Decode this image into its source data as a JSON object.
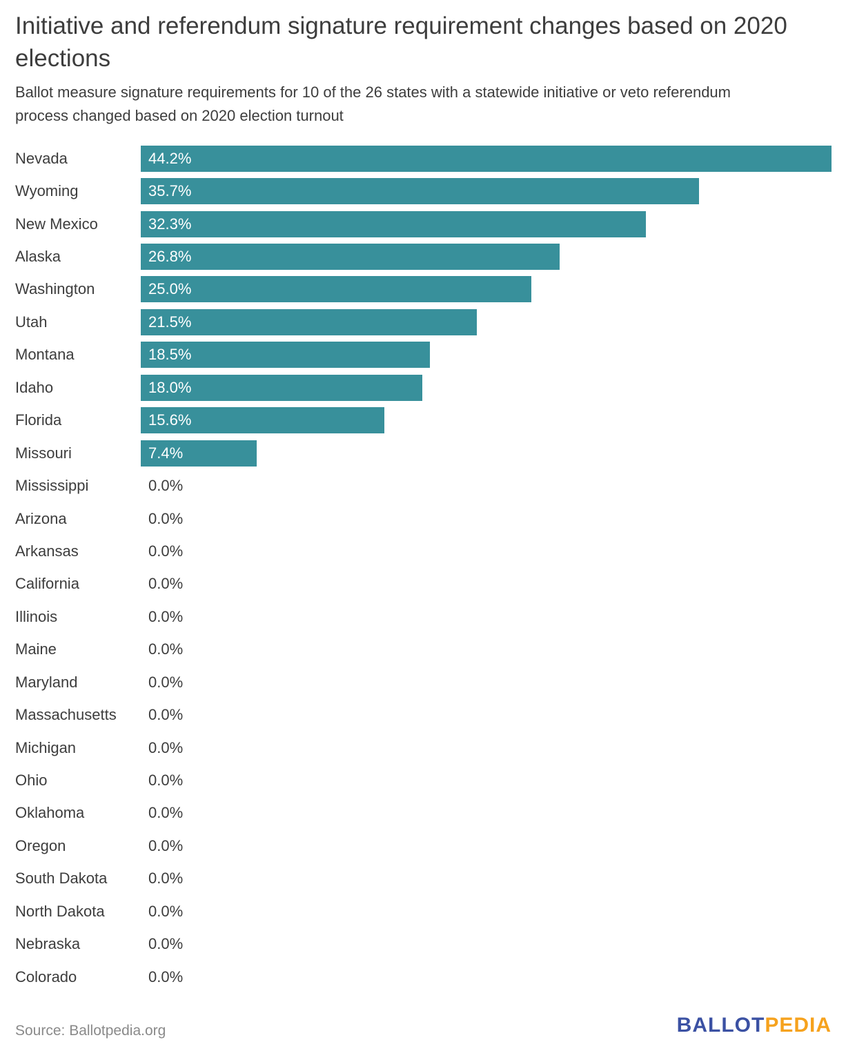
{
  "header": {
    "title": "Initiative and referendum signature requirement changes based on 2020 elections",
    "title_lines": [
      "Initiative and referendum signature requirement changes based on 2020",
      "elections"
    ],
    "subtitle": "Ballot measure signature requirements for 10 of the 26 states with a statewide initiative or veto referendum process changed based on 2020 election turnout",
    "subtitle_lines": [
      "Ballot measure signature requirements for 10 of the 26 states with a statewide initiative or veto referendum",
      "process changed based on 2020 election turnout"
    ]
  },
  "chart_data": {
    "type": "bar",
    "orientation": "horizontal",
    "title": "Initiative and referendum signature requirement changes based on 2020 elections",
    "categories": [
      "Nevada",
      "Wyoming",
      "New Mexico",
      "Alaska",
      "Washington",
      "Utah",
      "Montana",
      "Idaho",
      "Florida",
      "Missouri",
      "Mississippi",
      "Arizona",
      "Arkansas",
      "California",
      "Illinois",
      "Maine",
      "Maryland",
      "Massachusetts",
      "Michigan",
      "Ohio",
      "Oklahoma",
      "Oregon",
      "South Dakota",
      "North Dakota",
      "Nebraska",
      "Colorado"
    ],
    "values": [
      44.2,
      35.7,
      32.3,
      26.8,
      25.0,
      21.5,
      18.5,
      18.0,
      15.6,
      7.4,
      0.0,
      0.0,
      0.0,
      0.0,
      0.0,
      0.0,
      0.0,
      0.0,
      0.0,
      0.0,
      0.0,
      0.0,
      0.0,
      0.0,
      0.0,
      0.0
    ],
    "value_labels": [
      "44.2%",
      "35.7%",
      "32.3%",
      "26.8%",
      "25.0%",
      "21.5%",
      "18.5%",
      "18.0%",
      "15.6%",
      "7.4%",
      "0.0%",
      "0.0%",
      "0.0%",
      "0.0%",
      "0.0%",
      "0.0%",
      "0.0%",
      "0.0%",
      "0.0%",
      "0.0%",
      "0.0%",
      "0.0%",
      "0.0%",
      "0.0%",
      "0.0%",
      "0.0%"
    ],
    "xlim": [
      0,
      44.2
    ],
    "grid": false,
    "legend": false,
    "xlabel": "",
    "ylabel": "",
    "bar_color": "#38909b",
    "bar_label_color": "#ffffff",
    "zero_label_color": "#3d3d3d"
  },
  "footer": {
    "source": "Source: Ballotpedia.org",
    "logo_part1": "BALLOT",
    "logo_part2": "PEDIA",
    "logo_part1_color": "#3b51a3",
    "logo_part2_color": "#f6a21d"
  }
}
